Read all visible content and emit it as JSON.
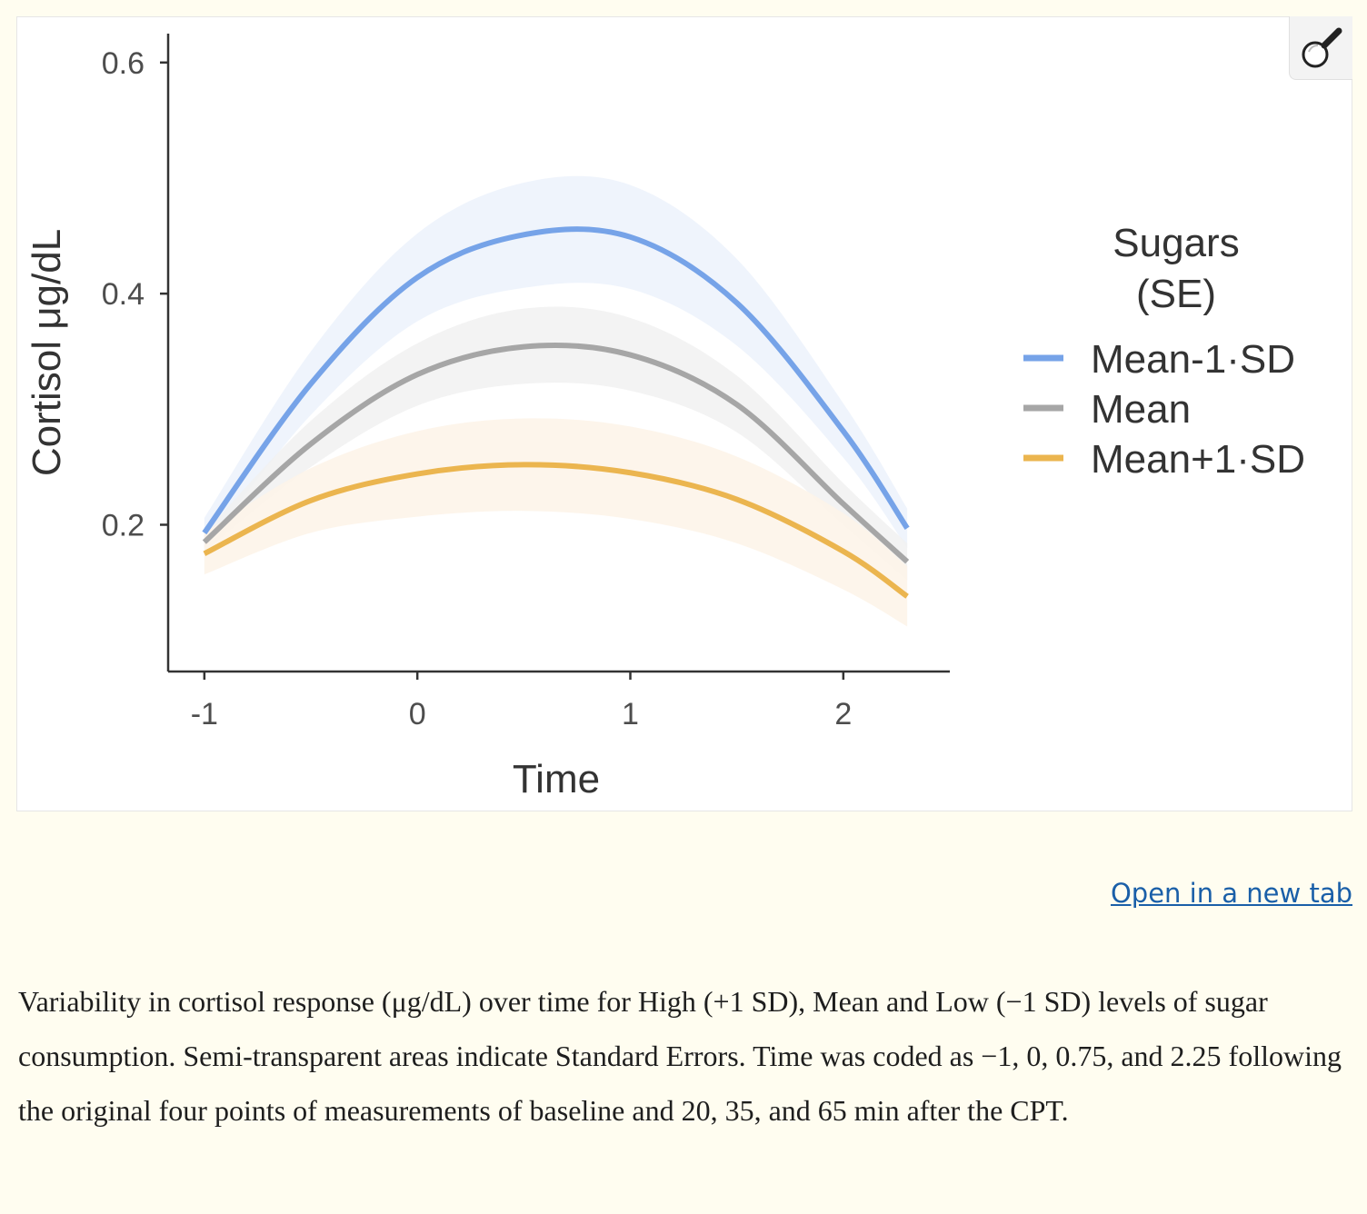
{
  "chart_data": {
    "type": "line",
    "xlabel": "Time",
    "ylabel": "Cortisol μg/dL",
    "xlim": [
      -1.17,
      2.5
    ],
    "ylim": [
      0.073,
      0.625
    ],
    "xticks": [
      "-1",
      "0",
      "1",
      "2"
    ],
    "yticks": [
      "0.2",
      "0.4",
      "0.6"
    ],
    "legend": {
      "title_line1": "Sugars",
      "title_line2": "(SE)",
      "placement": "right"
    },
    "x": [
      -1,
      -0.5,
      0,
      0.5,
      1,
      1.5,
      2,
      2.3
    ],
    "series": [
      {
        "name": "Mean-1·SD",
        "color": "#76a3e8",
        "band_color": "#ecf2fc",
        "values": [
          0.193,
          0.322,
          0.414,
          0.451,
          0.449,
          0.392,
          0.281,
          0.197
        ],
        "lower": [
          0.18,
          0.295,
          0.376,
          0.405,
          0.404,
          0.355,
          0.258,
          0.18
        ],
        "upper": [
          0.206,
          0.35,
          0.452,
          0.496,
          0.494,
          0.43,
          0.305,
          0.214
        ]
      },
      {
        "name": "Mean",
        "color": "#a6a6a6",
        "band_color": "#f1f1f1",
        "values": [
          0.185,
          0.27,
          0.33,
          0.354,
          0.347,
          0.304,
          0.218,
          0.168
        ],
        "lower": [
          0.177,
          0.25,
          0.303,
          0.322,
          0.316,
          0.28,
          0.2,
          0.152
        ],
        "upper": [
          0.193,
          0.29,
          0.357,
          0.387,
          0.379,
          0.329,
          0.236,
          0.184
        ]
      },
      {
        "name": "Mean+1·SD",
        "color": "#ebb54f",
        "band_color": "#fdf3e7",
        "values": [
          0.175,
          0.221,
          0.244,
          0.252,
          0.245,
          0.222,
          0.177,
          0.138
        ],
        "lower": [
          0.157,
          0.193,
          0.207,
          0.212,
          0.205,
          0.184,
          0.144,
          0.112
        ],
        "upper": [
          0.193,
          0.249,
          0.281,
          0.292,
          0.285,
          0.259,
          0.21,
          0.164
        ]
      }
    ]
  },
  "zoom_icon": "magnifier-icon",
  "open_link_text": "Open in a new tab",
  "caption": "Variability in cortisol response (μg/dL) over time for High (+1 SD), Mean and Low (−1 SD) levels of sugar consumption. Semi-transparent areas indicate Standard Errors. Time was coded as −1, 0, 0.75, and 2.25 following the original four points of measurements of baseline and 20, 35, and 65 min after the CPT."
}
